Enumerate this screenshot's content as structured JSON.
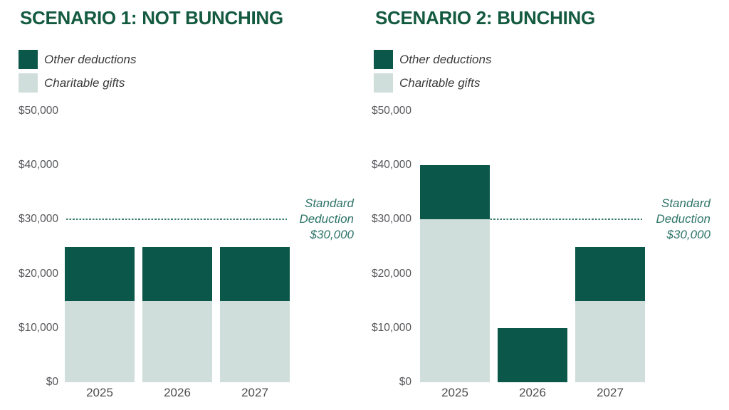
{
  "page": {
    "background": "#FFFFFF"
  },
  "colors": {
    "title_green": "#135A40",
    "bar_dark_green": "#0B574A",
    "bar_light_green": "#CFDEDA",
    "annotation_teal": "#2E7468",
    "dashed_line_teal": "#3E7F72",
    "axis_text_gray": "#55565A",
    "legend_text_gray": "#3A3A3C",
    "year_text_gray": "#4D4E50",
    "background": "#FFFFFF"
  },
  "legend": [
    {
      "label": "Other deductions",
      "color_key": "bar_dark_green"
    },
    {
      "label": "Charitable gifts",
      "color_key": "bar_light_green"
    }
  ],
  "chart_data": [
    {
      "type": "bar",
      "stacked": true,
      "title": "SCENARIO 1: NOT BUNCHING",
      "categories": [
        "2025",
        "2026",
        "2027"
      ],
      "series": [
        {
          "name": "Charitable gifts",
          "color_key": "bar_light_green",
          "values": [
            15000,
            15000,
            15000
          ]
        },
        {
          "name": "Other deductions",
          "color_key": "bar_dark_green",
          "values": [
            10000,
            10000,
            10000
          ]
        }
      ],
      "bar_totals": [
        25000,
        25000,
        25000
      ],
      "y_axis": {
        "tick_values": [
          0,
          10000,
          20000,
          30000,
          40000,
          50000
        ],
        "tick_labels": [
          "$0",
          "$10,000",
          "$20,000",
          "$30,000",
          "$40,000",
          "$50,000"
        ],
        "range": [
          0,
          50000
        ]
      },
      "reference_line": {
        "value": 30000,
        "style": "dashed",
        "label_lines": [
          "Standard",
          "Deduction",
          "$30,000"
        ],
        "label_text": "Standard Deduction $30,000"
      },
      "legend_position": "top-left",
      "grid": false
    },
    {
      "type": "bar",
      "stacked": true,
      "title": "SCENARIO 2: BUNCHING",
      "categories": [
        "2025",
        "2026",
        "2027"
      ],
      "series": [
        {
          "name": "Charitable gifts",
          "color_key": "bar_light_green",
          "values": [
            30000,
            0,
            15000
          ]
        },
        {
          "name": "Other deductions",
          "color_key": "bar_dark_green",
          "values": [
            10000,
            10000,
            10000
          ]
        }
      ],
      "bar_totals": [
        40000,
        10000,
        25000
      ],
      "y_axis": {
        "tick_values": [
          0,
          10000,
          20000,
          30000,
          40000,
          50000
        ],
        "tick_labels": [
          "$0",
          "$10,000",
          "$20,000",
          "$30,000",
          "$40,000",
          "$50,000"
        ],
        "range": [
          0,
          50000
        ]
      },
      "reference_line": {
        "value": 30000,
        "style": "dashed",
        "label_lines": [
          "Standard",
          "Deduction",
          "$30,000"
        ],
        "label_text": "Standard Deduction $30,000"
      },
      "legend_position": "top-left",
      "grid": false
    }
  ]
}
